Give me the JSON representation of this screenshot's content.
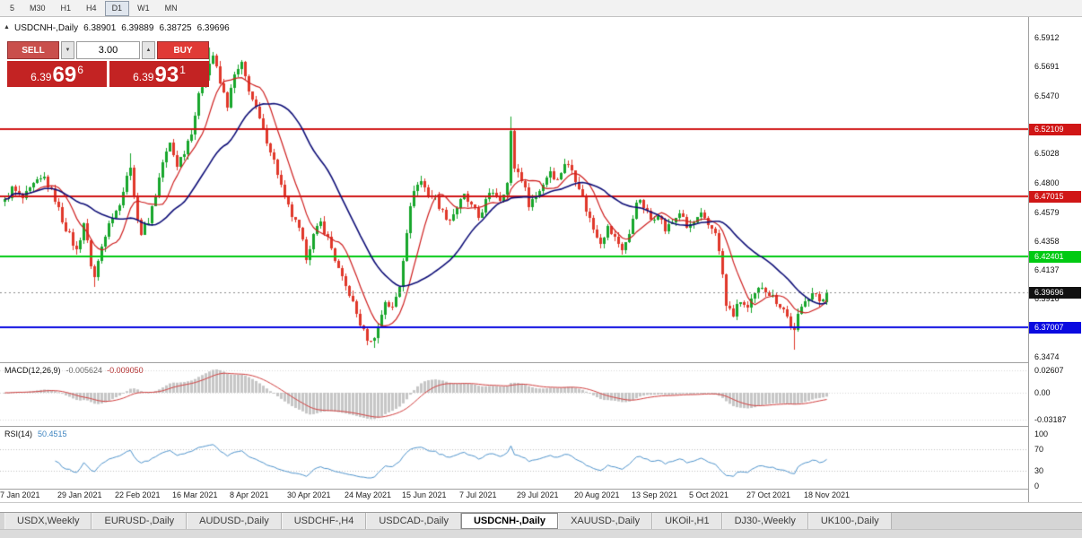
{
  "toolbar": {
    "timeframes": [
      {
        "label": "5",
        "active": false
      },
      {
        "label": "M30",
        "active": false
      },
      {
        "label": "H1",
        "active": false
      },
      {
        "label": "H4",
        "active": false
      },
      {
        "label": "D1",
        "active": true
      },
      {
        "label": "W1",
        "active": false
      },
      {
        "label": "MN",
        "active": false
      }
    ]
  },
  "chart_header": {
    "symbol": "USDCNH-,Daily",
    "open": "6.38901",
    "high": "6.39889",
    "low": "6.38725",
    "close": "6.39696"
  },
  "trade_panel": {
    "sell_label": "SELL",
    "buy_label": "BUY",
    "volume": "3.00",
    "spin_down": "▼",
    "spin_up": "▲",
    "sell_price": {
      "prefix": "6.39",
      "big": "69",
      "sup": "6"
    },
    "buy_price": {
      "prefix": "6.39",
      "big": "93",
      "sup": "1"
    }
  },
  "price_axis": {
    "ticks": [
      "6.5912",
      "6.5691",
      "6.5470",
      "6.5028",
      "6.4800",
      "6.4579",
      "6.4358",
      "6.4137",
      "6.3916",
      "6.3474"
    ]
  },
  "hlines": [
    {
      "value": 6.52109,
      "label": "6.52109",
      "color": "#d01616",
      "width": 2
    },
    {
      "value": 6.47015,
      "label": "6.47015",
      "color": "#d01616",
      "width": 2
    },
    {
      "value": 6.42401,
      "label": "6.42401",
      "color": "#00ca12",
      "width": 2
    },
    {
      "value": 6.37007,
      "label": "6.37007",
      "color": "#0a0ae0",
      "width": 2
    }
  ],
  "current_price": {
    "value": 6.39696,
    "label": "6.39696",
    "color": "#111111"
  },
  "macd_panel": {
    "name": "MACD(12,26,9)",
    "main_value": "-0.005624",
    "signal_value": "-0.009050",
    "axis": [
      {
        "label": "0.02607",
        "value": 0.02607
      },
      {
        "label": "0.00",
        "value": 0
      },
      {
        "label": "-0.03187",
        "value": -0.03187
      }
    ],
    "hist_color": "#c6c6c6",
    "signal_color": "#d24040"
  },
  "rsi_panel": {
    "name": "RSI(14)",
    "value": "50.4515",
    "axis": [
      {
        "label": "100",
        "value": 100
      },
      {
        "label": "70",
        "value": 70
      },
      {
        "label": "30",
        "value": 30
      },
      {
        "label": "0",
        "value": 0
      }
    ],
    "levels": [
      70,
      30
    ],
    "line_color": "#4f94cd"
  },
  "chart_data": {
    "type": "candlestick",
    "symbol": "USDCNH-",
    "timeframe": "Daily",
    "price_min_visible": 6.3474,
    "price_max_visible": 6.5912,
    "candle_count": 230,
    "colors": {
      "up": "#17a62b",
      "down": "#e0372a",
      "ma_fast": "#cf1f1f",
      "ma_slow": "#0f0f78"
    },
    "overlays": [
      {
        "name": "ma-fast",
        "period": 9
      },
      {
        "name": "ma-slow",
        "period": 27
      }
    ],
    "anchors": [
      [
        0,
        6.466
      ],
      [
        2,
        6.476
      ],
      [
        5,
        6.468
      ],
      [
        8,
        6.478
      ],
      [
        11,
        6.484
      ],
      [
        14,
        6.468
      ],
      [
        16,
        6.452
      ],
      [
        18,
        6.44
      ],
      [
        20,
        6.428
      ],
      [
        22,
        6.45
      ],
      [
        24,
        6.418
      ],
      [
        25,
        6.408
      ],
      [
        27,
        6.432
      ],
      [
        29,
        6.452
      ],
      [
        31,
        6.458
      ],
      [
        33,
        6.474
      ],
      [
        35,
        6.495
      ],
      [
        36,
        6.468
      ],
      [
        38,
        6.442
      ],
      [
        40,
        6.452
      ],
      [
        42,
        6.472
      ],
      [
        44,
        6.496
      ],
      [
        46,
        6.51
      ],
      [
        48,
        6.494
      ],
      [
        50,
        6.505
      ],
      [
        52,
        6.52
      ],
      [
        54,
        6.546
      ],
      [
        56,
        6.565
      ],
      [
        58,
        6.578
      ],
      [
        60,
        6.556
      ],
      [
        62,
        6.54
      ],
      [
        64,
        6.562
      ],
      [
        66,
        6.57
      ],
      [
        68,
        6.552
      ],
      [
        70,
        6.536
      ],
      [
        72,
        6.52
      ],
      [
        74,
        6.506
      ],
      [
        76,
        6.488
      ],
      [
        78,
        6.468
      ],
      [
        80,
        6.455
      ],
      [
        82,
        6.444
      ],
      [
        84,
        6.424
      ],
      [
        86,
        6.44
      ],
      [
        88,
        6.45
      ],
      [
        90,
        6.438
      ],
      [
        92,
        6.422
      ],
      [
        94,
        6.406
      ],
      [
        96,
        6.396
      ],
      [
        98,
        6.38
      ],
      [
        100,
        6.366
      ],
      [
        102,
        6.358
      ],
      [
        104,
        6.37
      ],
      [
        106,
        6.39
      ],
      [
        108,
        6.384
      ],
      [
        110,
        6.402
      ],
      [
        112,
        6.444
      ],
      [
        114,
        6.476
      ],
      [
        116,
        6.482
      ],
      [
        118,
        6.472
      ],
      [
        120,
        6.468
      ],
      [
        122,
        6.458
      ],
      [
        124,
        6.452
      ],
      [
        126,
        6.462
      ],
      [
        128,
        6.47
      ],
      [
        130,
        6.462
      ],
      [
        132,
        6.454
      ],
      [
        134,
        6.466
      ],
      [
        136,
        6.474
      ],
      [
        138,
        6.468
      ],
      [
        140,
        6.48
      ],
      [
        141,
        6.518
      ],
      [
        142,
        6.492
      ],
      [
        144,
        6.484
      ],
      [
        146,
        6.465
      ],
      [
        148,
        6.47
      ],
      [
        150,
        6.48
      ],
      [
        152,
        6.49
      ],
      [
        154,
        6.482
      ],
      [
        156,
        6.496
      ],
      [
        158,
        6.49
      ],
      [
        160,
        6.478
      ],
      [
        162,
        6.46
      ],
      [
        164,
        6.445
      ],
      [
        166,
        6.436
      ],
      [
        168,
        6.446
      ],
      [
        170,
        6.438
      ],
      [
        172,
        6.43
      ],
      [
        174,
        6.44
      ],
      [
        176,
        6.468
      ],
      [
        178,
        6.462
      ],
      [
        180,
        6.452
      ],
      [
        182,
        6.458
      ],
      [
        184,
        6.444
      ],
      [
        186,
        6.45
      ],
      [
        188,
        6.458
      ],
      [
        190,
        6.446
      ],
      [
        192,
        6.45
      ],
      [
        194,
        6.455
      ],
      [
        196,
        6.448
      ],
      [
        198,
        6.444
      ],
      [
        200,
        6.41
      ],
      [
        201,
        6.386
      ],
      [
        203,
        6.38
      ],
      [
        205,
        6.39
      ],
      [
        207,
        6.384
      ],
      [
        209,
        6.394
      ],
      [
        211,
        6.402
      ],
      [
        213,
        6.396
      ],
      [
        215,
        6.39
      ],
      [
        217,
        6.384
      ],
      [
        219,
        6.372
      ],
      [
        220,
        6.366
      ],
      [
        221,
        6.378
      ],
      [
        223,
        6.392
      ],
      [
        225,
        6.396
      ],
      [
        227,
        6.39
      ],
      [
        229,
        6.397
      ]
    ],
    "spikes": [
      {
        "i": 25,
        "low": 6.401
      },
      {
        "i": 35,
        "high": 6.503
      },
      {
        "i": 57,
        "high": 6.584
      },
      {
        "i": 101,
        "low": 6.357
      },
      {
        "i": 103,
        "low": 6.354
      },
      {
        "i": 141,
        "high": 6.531
      },
      {
        "i": 220,
        "low": 6.353
      }
    ],
    "last_candle": {
      "o": 6.38901,
      "h": 6.39889,
      "l": 6.38725,
      "c": 6.39696
    },
    "date_labels": [
      {
        "label": "7 Jan 2021",
        "index": 0
      },
      {
        "label": "29 Jan 2021",
        "index": 16
      },
      {
        "label": "22 Feb 2021",
        "index": 32
      },
      {
        "label": "16 Mar 2021",
        "index": 48
      },
      {
        "label": "8 Apr 2021",
        "index": 64
      },
      {
        "label": "30 Apr 2021",
        "index": 80
      },
      {
        "label": "24 May 2021",
        "index": 96
      },
      {
        "label": "15 Jun 2021",
        "index": 112
      },
      {
        "label": "7 Jul 2021",
        "index": 128
      },
      {
        "label": "29 Jul 2021",
        "index": 144
      },
      {
        "label": "20 Aug 2021",
        "index": 160
      },
      {
        "label": "13 Sep 2021",
        "index": 176
      },
      {
        "label": "5 Oct 2021",
        "index": 192
      },
      {
        "label": "27 Oct 2021",
        "index": 208
      },
      {
        "label": "18 Nov 2021",
        "index": 224
      }
    ]
  },
  "bottom_tabs": [
    {
      "label": "USDX,Weekly",
      "active": false
    },
    {
      "label": "EURUSD-,Daily",
      "active": false
    },
    {
      "label": "AUDUSD-,Daily",
      "active": false
    },
    {
      "label": "USDCHF-,H4",
      "active": false
    },
    {
      "label": "USDCAD-,Daily",
      "active": false
    },
    {
      "label": "USDCNH-,Daily",
      "active": true
    },
    {
      "label": "XAUUSD-,Daily",
      "active": false
    },
    {
      "label": "UKOil-,H1",
      "active": false
    },
    {
      "label": "DJ30-,Weekly",
      "active": false
    },
    {
      "label": "UK100-,Daily",
      "active": false
    }
  ]
}
